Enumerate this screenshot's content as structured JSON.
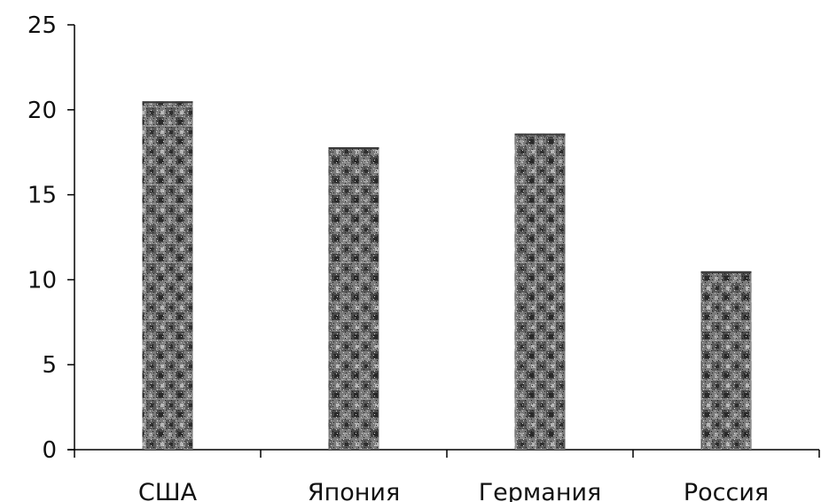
{
  "chart_data": {
    "type": "bar",
    "categories": [
      "США",
      "Япония",
      "Германия",
      "Россия"
    ],
    "values": [
      20.5,
      17.8,
      18.6,
      10.5
    ],
    "ylim": [
      0,
      25
    ],
    "yticks": [
      "0",
      "5",
      "10",
      "15",
      "20",
      "25"
    ],
    "title": "",
    "xlabel": "",
    "ylabel": "",
    "grid": false,
    "legend": "none",
    "bar_fill": "dark gray dither pattern",
    "colors": {
      "bar_dark": "#3a3a3a",
      "bar_mid": "#8a8a8a",
      "bar_light": "#c8c8c8",
      "axis": "#000000"
    }
  }
}
